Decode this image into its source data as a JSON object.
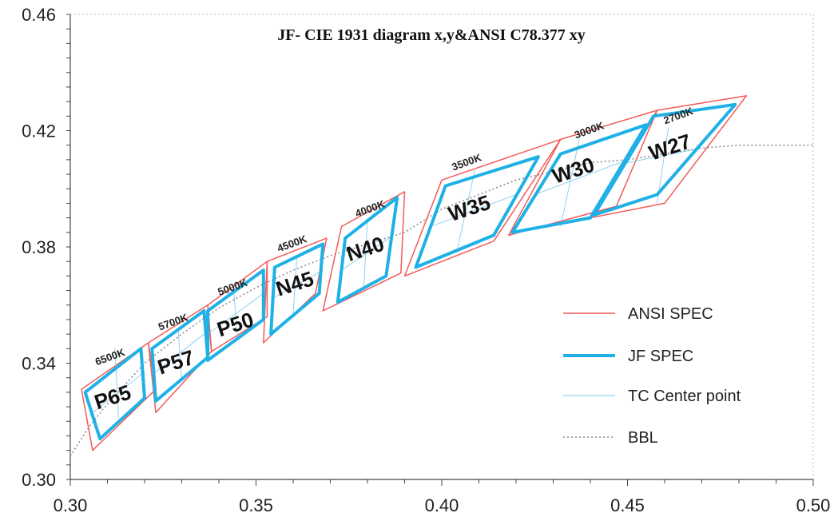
{
  "chart_data": {
    "type": "scatter",
    "title": "JF- CIE 1931 diagram x,y&ANSI C78.377 xy",
    "xlim": [
      0.3,
      0.5
    ],
    "ylim": [
      0.3,
      0.46
    ],
    "x_ticks": [
      "0.30",
      "0.35",
      "0.40",
      "0.45",
      "0.50"
    ],
    "y_ticks": [
      "0.30",
      "0.34",
      "0.38",
      "0.42",
      "0.46"
    ],
    "grid": false,
    "legend_position": "bottom-right",
    "legend": [
      {
        "label": "ANSI SPEC",
        "style": "thin-red"
      },
      {
        "label": "JF SPEC",
        "style": "thick-blue"
      },
      {
        "label": "TC Center point",
        "style": "thin-light-blue"
      },
      {
        "label": "BBL",
        "style": "dotted-gray"
      }
    ],
    "colors": {
      "ansi": "#f25a5a",
      "jf": "#1fb1e6",
      "tc": "#8fd2ef",
      "bbl": "#888888",
      "axis": "#444444"
    },
    "bbl_points": [
      [
        0.3,
        0.308
      ],
      [
        0.305,
        0.318
      ],
      [
        0.31,
        0.326
      ],
      [
        0.32,
        0.34
      ],
      [
        0.33,
        0.35
      ],
      [
        0.34,
        0.359
      ],
      [
        0.35,
        0.366
      ],
      [
        0.36,
        0.372
      ],
      [
        0.37,
        0.377
      ],
      [
        0.38,
        0.381
      ],
      [
        0.39,
        0.385
      ],
      [
        0.4,
        0.393
      ],
      [
        0.41,
        0.398
      ],
      [
        0.42,
        0.403
      ],
      [
        0.43,
        0.406
      ],
      [
        0.44,
        0.409
      ],
      [
        0.45,
        0.41
      ],
      [
        0.46,
        0.412
      ],
      [
        0.47,
        0.414
      ],
      [
        0.48,
        0.415
      ],
      [
        0.49,
        0.415
      ],
      [
        0.5,
        0.415
      ]
    ],
    "bins": [
      {
        "jf_name": "P65",
        "cct": "6500K",
        "ansi": [
          [
            0.303,
            0.331
          ],
          [
            0.321,
            0.347
          ],
          [
            0.323,
            0.331
          ],
          [
            0.306,
            0.31
          ]
        ],
        "jf": [
          [
            0.304,
            0.33
          ],
          [
            0.319,
            0.345
          ],
          [
            0.32,
            0.328
          ],
          [
            0.308,
            0.314
          ]
        ],
        "tc": [
          [
            0.305,
            0.322
          ],
          [
            0.32,
            0.337
          ],
          [
            0.312,
            0.345
          ],
          [
            0.313,
            0.321
          ]
        ],
        "label_pos": [
          0.312,
          0.326
        ],
        "cct_pos": [
          0.311,
          0.341
        ]
      },
      {
        "jf_name": "P57",
        "cct": "5700K",
        "ansi": [
          [
            0.321,
            0.347
          ],
          [
            0.337,
            0.36
          ],
          [
            0.338,
            0.344
          ],
          [
            0.323,
            0.323
          ]
        ],
        "jf": [
          [
            0.322,
            0.345
          ],
          [
            0.336,
            0.358
          ],
          [
            0.337,
            0.342
          ],
          [
            0.323,
            0.327
          ]
        ],
        "tc": [
          [
            0.322,
            0.336
          ],
          [
            0.336,
            0.35
          ],
          [
            0.329,
            0.352
          ],
          [
            0.33,
            0.334
          ]
        ],
        "label_pos": [
          0.329,
          0.338
        ],
        "cct_pos": [
          0.328,
          0.353
        ]
      },
      {
        "jf_name": "P50",
        "cct": "5000K",
        "ansi": [
          [
            0.337,
            0.36
          ],
          [
            0.353,
            0.375
          ],
          [
            0.353,
            0.356
          ],
          [
            0.338,
            0.344
          ]
        ],
        "jf": [
          [
            0.337,
            0.358
          ],
          [
            0.352,
            0.372
          ],
          [
            0.352,
            0.355
          ],
          [
            0.337,
            0.341
          ]
        ],
        "tc": [
          [
            0.337,
            0.35
          ],
          [
            0.352,
            0.364
          ],
          [
            0.344,
            0.365
          ],
          [
            0.345,
            0.349
          ]
        ],
        "label_pos": [
          0.345,
          0.351
        ],
        "cct_pos": [
          0.344,
          0.365
        ]
      },
      {
        "jf_name": "N45",
        "cct": "4500K",
        "ansi": [
          [
            0.353,
            0.375
          ],
          [
            0.369,
            0.383
          ],
          [
            0.366,
            0.364
          ],
          [
            0.352,
            0.347
          ]
        ],
        "jf": [
          [
            0.355,
            0.373
          ],
          [
            0.368,
            0.381
          ],
          [
            0.367,
            0.364
          ],
          [
            0.354,
            0.35
          ]
        ],
        "tc": [
          [
            0.354,
            0.362
          ],
          [
            0.368,
            0.372
          ],
          [
            0.361,
            0.377
          ],
          [
            0.36,
            0.357
          ]
        ],
        "label_pos": [
          0.361,
          0.365
        ],
        "cct_pos": [
          0.36,
          0.38
        ]
      },
      {
        "jf_name": "N40",
        "cct": "4000K",
        "ansi": [
          [
            0.373,
            0.387
          ],
          [
            0.39,
            0.399
          ],
          [
            0.389,
            0.371
          ],
          [
            0.368,
            0.358
          ]
        ],
        "jf": [
          [
            0.374,
            0.383
          ],
          [
            0.388,
            0.397
          ],
          [
            0.385,
            0.37
          ],
          [
            0.372,
            0.361
          ]
        ],
        "tc": [
          [
            0.373,
            0.372
          ],
          [
            0.387,
            0.384
          ],
          [
            0.38,
            0.39
          ],
          [
            0.379,
            0.366
          ]
        ],
        "label_pos": [
          0.38,
          0.377
        ],
        "cct_pos": [
          0.381,
          0.392
        ]
      },
      {
        "jf_name": "W35",
        "cct": "3500K",
        "ansi": [
          [
            0.4,
            0.403
          ],
          [
            0.432,
            0.417
          ],
          [
            0.414,
            0.382
          ],
          [
            0.39,
            0.37
          ]
        ],
        "jf": [
          [
            0.401,
            0.401
          ],
          [
            0.426,
            0.411
          ],
          [
            0.414,
            0.384
          ],
          [
            0.393,
            0.373
          ]
        ],
        "tc": [
          [
            0.397,
            0.387
          ],
          [
            0.42,
            0.398
          ],
          [
            0.409,
            0.407
          ],
          [
            0.404,
            0.378
          ]
        ],
        "label_pos": [
          0.408,
          0.391
        ],
        "cct_pos": [
          0.407,
          0.408
        ]
      },
      {
        "jf_name": "W30",
        "cct": "3000K",
        "ansi": [
          [
            0.432,
            0.417
          ],
          [
            0.458,
            0.427
          ],
          [
            0.447,
            0.394
          ],
          [
            0.418,
            0.384
          ]
        ],
        "jf": [
          [
            0.432,
            0.412
          ],
          [
            0.455,
            0.422
          ],
          [
            0.44,
            0.39
          ],
          [
            0.419,
            0.385
          ]
        ],
        "tc": [
          [
            0.425,
            0.398
          ],
          [
            0.448,
            0.409
          ],
          [
            0.437,
            0.417
          ],
          [
            0.432,
            0.387
          ]
        ],
        "label_pos": [
          0.436,
          0.404
        ],
        "cct_pos": [
          0.44,
          0.419
        ]
      },
      {
        "jf_name": "W27",
        "cct": "2700K",
        "ansi": [
          [
            0.458,
            0.427
          ],
          [
            0.482,
            0.432
          ],
          [
            0.46,
            0.395
          ],
          [
            0.44,
            0.39
          ]
        ],
        "jf": [
          [
            0.457,
            0.425
          ],
          [
            0.479,
            0.429
          ],
          [
            0.458,
            0.398
          ],
          [
            0.441,
            0.391
          ]
        ],
        "tc": [
          [
            0.45,
            0.409
          ],
          [
            0.47,
            0.414
          ],
          [
            0.461,
            0.421
          ],
          [
            0.458,
            0.395
          ]
        ],
        "label_pos": [
          0.462,
          0.412
        ],
        "cct_pos": [
          0.464,
          0.424
        ]
      }
    ]
  }
}
